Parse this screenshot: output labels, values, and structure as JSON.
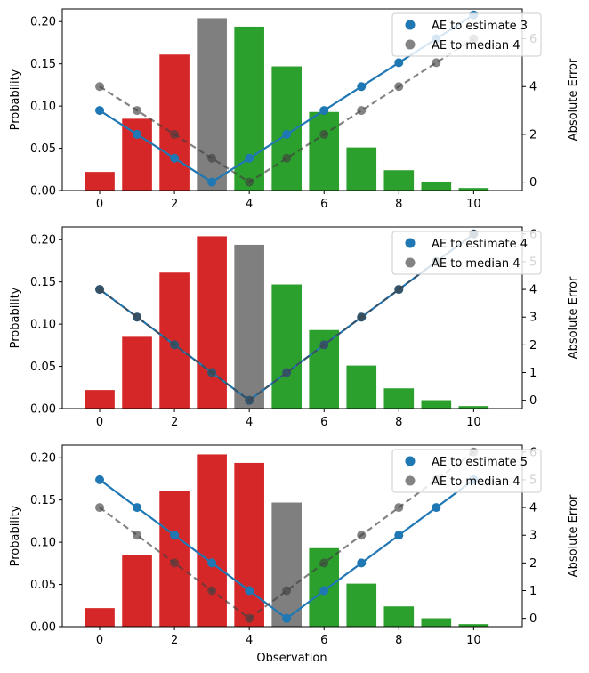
{
  "figure": {
    "xlabel": "Observation"
  },
  "chart_data": [
    {
      "type": "bar",
      "ylabel": "Probability",
      "y2label": "Absolute Error",
      "categories": [
        0,
        1,
        2,
        3,
        4,
        5,
        6,
        7,
        8,
        9,
        10
      ],
      "values": [
        0.022,
        0.085,
        0.161,
        0.204,
        0.194,
        0.147,
        0.093,
        0.051,
        0.024,
        0.01,
        0.003
      ],
      "bar_colors": [
        "#d62728",
        "#d62728",
        "#d62728",
        "#7f7f7f",
        "#2ca02c",
        "#2ca02c",
        "#2ca02c",
        "#2ca02c",
        "#2ca02c",
        "#2ca02c",
        "#2ca02c"
      ],
      "ylim": [
        0,
        0.215
      ],
      "yticks": [
        "0.00",
        "0.05",
        "0.10",
        "0.15",
        "0.20"
      ],
      "y2lim": [
        -0.35,
        7.25
      ],
      "y2ticks": [
        "0",
        "2",
        "4",
        "6"
      ],
      "xticks": [
        "0",
        "2",
        "4",
        "6",
        "8",
        "10"
      ],
      "series": [
        {
          "name": "AE to estimate 3",
          "values": [
            3,
            2,
            1,
            0,
            1,
            2,
            3,
            4,
            5,
            6,
            7
          ],
          "color": "#1f77b4"
        },
        {
          "name": "AE to median 4",
          "values": [
            4,
            3,
            2,
            1,
            0,
            1,
            2,
            3,
            4,
            5,
            6
          ],
          "color": "#404040"
        }
      ]
    },
    {
      "type": "bar",
      "ylabel": "Probability",
      "y2label": "Absolute Error",
      "categories": [
        0,
        1,
        2,
        3,
        4,
        5,
        6,
        7,
        8,
        9,
        10
      ],
      "values": [
        0.022,
        0.085,
        0.161,
        0.204,
        0.194,
        0.147,
        0.093,
        0.051,
        0.024,
        0.01,
        0.003
      ],
      "bar_colors": [
        "#d62728",
        "#d62728",
        "#d62728",
        "#d62728",
        "#7f7f7f",
        "#2ca02c",
        "#2ca02c",
        "#2ca02c",
        "#2ca02c",
        "#2ca02c",
        "#2ca02c"
      ],
      "ylim": [
        0,
        0.215
      ],
      "yticks": [
        "0.00",
        "0.05",
        "0.10",
        "0.15",
        "0.20"
      ],
      "y2lim": [
        -0.3,
        6.25
      ],
      "y2ticks": [
        "0",
        "1",
        "2",
        "3",
        "4",
        "5",
        "6"
      ],
      "xticks": [
        "0",
        "2",
        "4",
        "6",
        "8",
        "10"
      ],
      "series": [
        {
          "name": "AE to estimate 4",
          "values": [
            4,
            3,
            2,
            1,
            0,
            1,
            2,
            3,
            4,
            5,
            6
          ],
          "color": "#1f77b4"
        },
        {
          "name": "AE to median 4",
          "values": [
            4,
            3,
            2,
            1,
            0,
            1,
            2,
            3,
            4,
            5,
            6
          ],
          "color": "#404040"
        }
      ]
    },
    {
      "type": "bar",
      "ylabel": "Probability",
      "y2label": "Absolute Error",
      "categories": [
        0,
        1,
        2,
        3,
        4,
        5,
        6,
        7,
        8,
        9,
        10
      ],
      "values": [
        0.022,
        0.085,
        0.161,
        0.204,
        0.194,
        0.147,
        0.093,
        0.051,
        0.024,
        0.01,
        0.003
      ],
      "bar_colors": [
        "#d62728",
        "#d62728",
        "#d62728",
        "#d62728",
        "#d62728",
        "#7f7f7f",
        "#2ca02c",
        "#2ca02c",
        "#2ca02c",
        "#2ca02c",
        "#2ca02c"
      ],
      "ylim": [
        0,
        0.215
      ],
      "yticks": [
        "0.00",
        "0.05",
        "0.10",
        "0.15",
        "0.20"
      ],
      "y2lim": [
        -0.3,
        6.25
      ],
      "y2ticks": [
        "0",
        "1",
        "2",
        "3",
        "4",
        "5",
        "6"
      ],
      "xticks": [
        "0",
        "2",
        "4",
        "6",
        "8",
        "10"
      ],
      "series": [
        {
          "name": "AE to estimate 5",
          "values": [
            5,
            4,
            3,
            2,
            1,
            0,
            1,
            2,
            3,
            4,
            5
          ],
          "color": "#1f77b4"
        },
        {
          "name": "AE to median 4",
          "values": [
            4,
            3,
            2,
            1,
            0,
            1,
            2,
            3,
            4,
            5,
            6
          ],
          "color": "#404040"
        }
      ]
    }
  ]
}
